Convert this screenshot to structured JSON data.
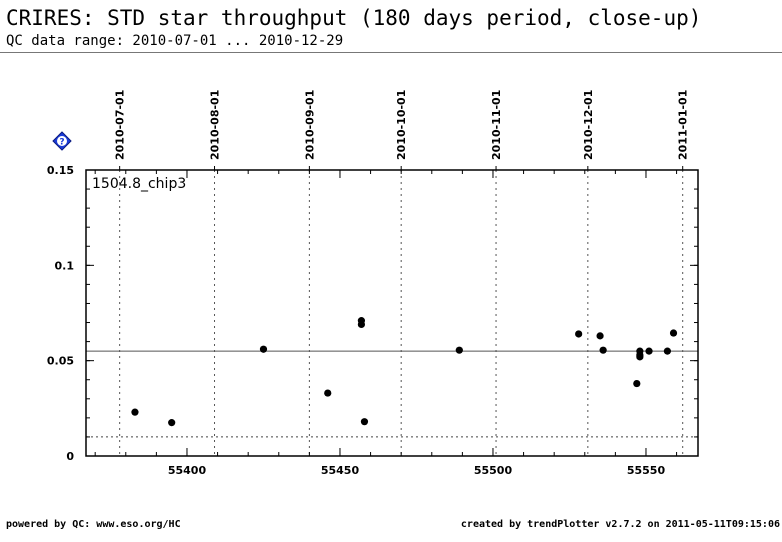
{
  "header": {
    "title": "CRIRES: STD star throughput (180 days period, close-up)",
    "subtitle": "QC data range: 2010-07-01 ... 2010-12-29"
  },
  "help_icon": "help-question-icon",
  "colors": {
    "accent": "#1a3cd8",
    "grid": "#666666",
    "points": "#000000"
  },
  "footer": {
    "left": "powered by QC: www.eso.org/HC",
    "right": "created by trendPlotter v2.7.2 on 2011-05-11T09:15:06"
  },
  "chart_data": {
    "type": "scatter",
    "label": "1504.8_chip3",
    "xlim": [
      55367,
      55567
    ],
    "ylim": [
      0,
      0.15
    ],
    "x_ticks": [
      55400,
      55450,
      55500,
      55550
    ],
    "y_ticks": [
      0,
      0.05,
      0.1,
      0.15
    ],
    "y_tick_labels": [
      "0",
      "0.05",
      "0.1",
      "0.15"
    ],
    "date_markers": [
      {
        "mjd": 55378,
        "label": "2010-07-01"
      },
      {
        "mjd": 55409,
        "label": "2010-08-01"
      },
      {
        "mjd": 55440,
        "label": "2010-09-01"
      },
      {
        "mjd": 55470,
        "label": "2010-10-01"
      },
      {
        "mjd": 55501,
        "label": "2010-11-01"
      },
      {
        "mjd": 55531,
        "label": "2010-12-01"
      },
      {
        "mjd": 55562,
        "label": "2011-01-01"
      }
    ],
    "reference_lines": [
      {
        "y": 0.055,
        "style": "solid"
      },
      {
        "y": 0.01,
        "style": "dotted"
      }
    ],
    "points": [
      {
        "x": 55383.0,
        "y": 0.023
      },
      {
        "x": 55395.0,
        "y": 0.0175
      },
      {
        "x": 55425.0,
        "y": 0.056
      },
      {
        "x": 55446.0,
        "y": 0.033
      },
      {
        "x": 55457.0,
        "y": 0.071
      },
      {
        "x": 55457.0,
        "y": 0.069
      },
      {
        "x": 55458.0,
        "y": 0.018
      },
      {
        "x": 55489.0,
        "y": 0.0555
      },
      {
        "x": 55528.0,
        "y": 0.064
      },
      {
        "x": 55535.0,
        "y": 0.063
      },
      {
        "x": 55536.0,
        "y": 0.0555
      },
      {
        "x": 55547.0,
        "y": 0.038
      },
      {
        "x": 55548.0,
        "y": 0.055
      },
      {
        "x": 55548.0,
        "y": 0.053
      },
      {
        "x": 55548.0,
        "y": 0.052
      },
      {
        "x": 55551.0,
        "y": 0.055
      },
      {
        "x": 55557.0,
        "y": 0.055
      },
      {
        "x": 55559.0,
        "y": 0.0645
      }
    ]
  }
}
